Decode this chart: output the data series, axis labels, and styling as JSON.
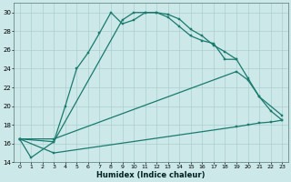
{
  "bg_color": "#cce8e8",
  "grid_color": "#aacfcf",
  "line_color": "#1a7a6e",
  "xlabel": "Humidex (Indice chaleur)",
  "ylim": [
    14,
    31
  ],
  "xlim": [
    -0.5,
    23.5
  ],
  "yticks": [
    14,
    16,
    18,
    20,
    22,
    24,
    26,
    28,
    30
  ],
  "xticks": [
    0,
    1,
    2,
    3,
    4,
    5,
    6,
    7,
    8,
    9,
    10,
    11,
    12,
    13,
    14,
    15,
    16,
    17,
    18,
    19,
    20,
    21,
    22,
    23
  ],
  "line1_x": [
    0,
    1,
    3,
    4,
    5,
    6,
    7,
    8,
    9,
    10,
    11,
    12,
    13,
    14,
    15,
    16,
    17,
    18,
    19
  ],
  "line1_y": [
    16.5,
    14.5,
    16.2,
    20.0,
    24.0,
    25.7,
    27.8,
    30.0,
    28.8,
    29.2,
    30.0,
    30.0,
    29.8,
    29.3,
    28.2,
    27.5,
    26.5,
    25.8,
    25.0
  ],
  "line2_x": [
    0,
    3,
    9,
    10,
    11,
    12,
    13,
    14,
    15,
    16,
    17,
    18,
    19,
    20,
    21,
    22,
    23
  ],
  "line2_y": [
    16.5,
    16.2,
    29.2,
    30.0,
    30.0,
    30.0,
    29.5,
    28.5,
    27.5,
    27.0,
    26.7,
    25.0,
    25.0,
    23.0,
    21.0,
    19.5,
    18.5
  ],
  "line3_x": [
    0,
    3,
    19,
    20,
    21,
    23
  ],
  "line3_y": [
    16.5,
    16.5,
    23.7,
    22.8,
    21.0,
    19.0
  ],
  "line4_x": [
    0,
    3,
    19,
    20,
    21,
    22,
    23
  ],
  "line4_y": [
    16.5,
    15.0,
    17.8,
    18.0,
    18.2,
    18.3,
    18.5
  ]
}
